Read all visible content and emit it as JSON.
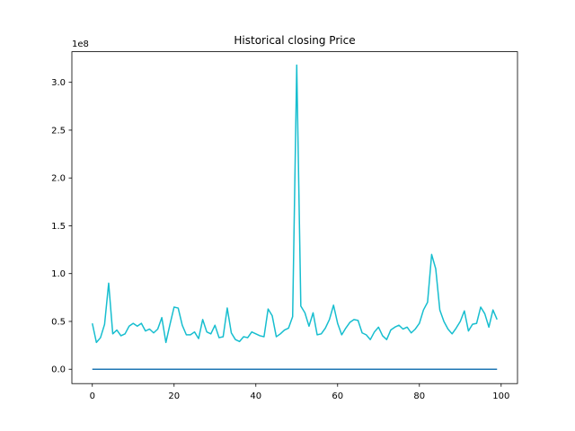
{
  "chart_data": {
    "type": "line",
    "title": "Historical closing Price",
    "xlabel": "",
    "ylabel": "",
    "y_multiplier_label": "1e8",
    "xlim": [
      -5,
      104
    ],
    "ylim": [
      -0.15,
      3.32
    ],
    "y_scale_factor": 100000000,
    "x_ticks": [
      0,
      20,
      40,
      60,
      80,
      100
    ],
    "x_tick_labels": [
      "0",
      "20",
      "40",
      "60",
      "80",
      "100"
    ],
    "y_ticks": [
      0.0,
      0.5,
      1.0,
      1.5,
      2.0,
      2.5,
      3.0
    ],
    "y_tick_labels": [
      "0.0",
      "0.5",
      "1.0",
      "1.5",
      "2.0",
      "2.5",
      "3.0"
    ],
    "grid": false,
    "legend": "none",
    "series": [
      {
        "color": "#1f77b4",
        "x": [
          0,
          99
        ],
        "y": [
          0.0,
          0.0
        ]
      },
      {
        "color": "#17becf",
        "x": [
          0,
          1,
          2,
          3,
          4,
          5,
          6,
          7,
          8,
          9,
          10,
          11,
          12,
          13,
          14,
          15,
          16,
          17,
          18,
          19,
          20,
          21,
          22,
          23,
          24,
          25,
          26,
          27,
          28,
          29,
          30,
          31,
          32,
          33,
          34,
          35,
          36,
          37,
          38,
          39,
          40,
          41,
          42,
          43,
          44,
          45,
          46,
          47,
          48,
          49,
          50,
          51,
          52,
          53,
          54,
          55,
          56,
          57,
          58,
          59,
          60,
          61,
          62,
          63,
          64,
          65,
          66,
          67,
          68,
          69,
          70,
          71,
          72,
          73,
          74,
          75,
          76,
          77,
          78,
          79,
          80,
          81,
          82,
          83,
          84,
          85,
          86,
          87,
          88,
          89,
          90,
          91,
          92,
          93,
          94,
          95,
          96,
          97,
          98,
          99
        ],
        "y": [
          0.48,
          0.28,
          0.33,
          0.47,
          0.9,
          0.37,
          0.41,
          0.35,
          0.37,
          0.45,
          0.48,
          0.45,
          0.48,
          0.4,
          0.42,
          0.38,
          0.42,
          0.54,
          0.28,
          0.47,
          0.65,
          0.64,
          0.46,
          0.36,
          0.36,
          0.39,
          0.32,
          0.52,
          0.39,
          0.37,
          0.46,
          0.33,
          0.34,
          0.64,
          0.38,
          0.31,
          0.29,
          0.34,
          0.33,
          0.39,
          0.37,
          0.35,
          0.34,
          0.63,
          0.56,
          0.34,
          0.37,
          0.41,
          0.43,
          0.55,
          3.18,
          0.66,
          0.59,
          0.45,
          0.59,
          0.36,
          0.37,
          0.43,
          0.52,
          0.67,
          0.48,
          0.36,
          0.43,
          0.49,
          0.52,
          0.51,
          0.38,
          0.36,
          0.31,
          0.39,
          0.44,
          0.35,
          0.31,
          0.41,
          0.44,
          0.46,
          0.42,
          0.44,
          0.38,
          0.42,
          0.48,
          0.62,
          0.7,
          1.2,
          1.05,
          0.62,
          0.5,
          0.42,
          0.37,
          0.43,
          0.5,
          0.61,
          0.4,
          0.47,
          0.48,
          0.65,
          0.58,
          0.44,
          0.62,
          0.52
        ]
      }
    ]
  }
}
